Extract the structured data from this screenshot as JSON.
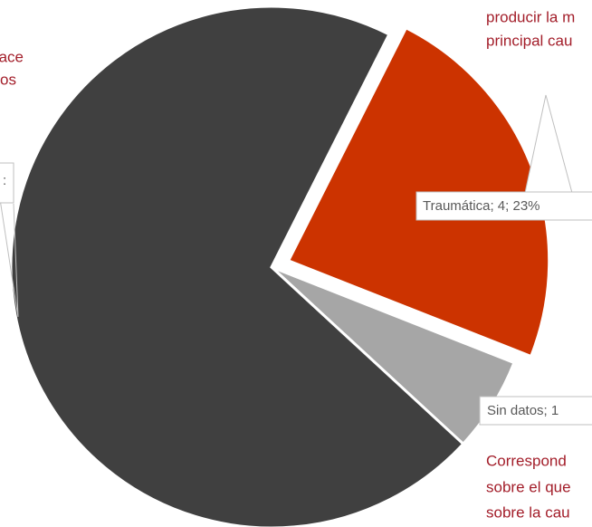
{
  "chart_data": {
    "type": "pie",
    "values": [
      4,
      1,
      12
    ],
    "value_labels": [
      "Traumática; 4; 23%",
      "Sin datos; 1",
      ":"
    ],
    "colors": [
      "#cc3300",
      "#a6a6a6",
      "#404040"
    ],
    "annotations": [
      "producir la m",
      "principal cau",
      "ace",
      "os",
      "Correspond",
      "sobre el que",
      "sobre la cau"
    ]
  }
}
